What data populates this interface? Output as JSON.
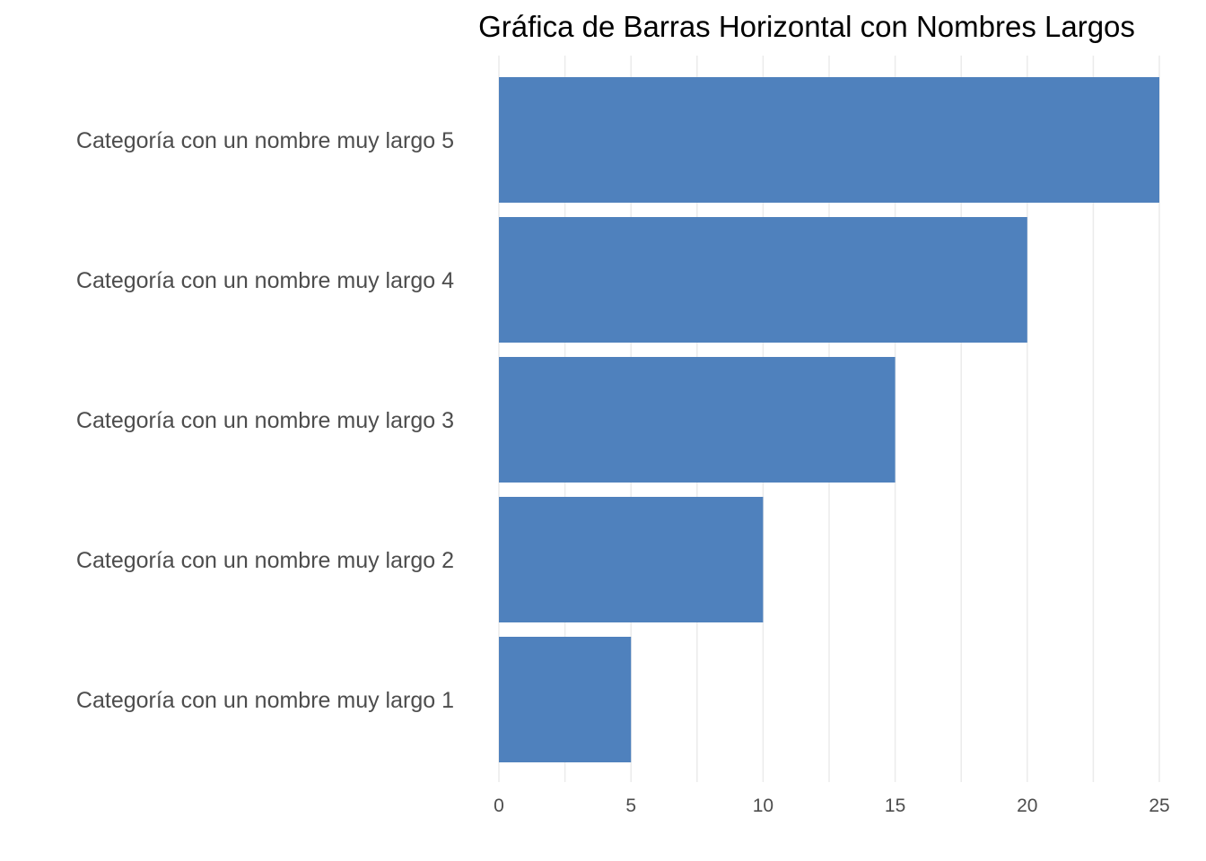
{
  "chart_data": {
    "type": "bar",
    "orientation": "horizontal",
    "title": "Gráfica de Barras Horizontal con Nombres Largos",
    "xlabel": "",
    "ylabel": "",
    "categories": [
      "Categoría con un nombre muy largo 1",
      "Categoría con un nombre muy largo 2",
      "Categoría con un nombre muy largo 3",
      "Categoría con un nombre muy largo 4",
      "Categoría con un nombre muy largo 5"
    ],
    "values": [
      5,
      10,
      15,
      20,
      25
    ],
    "xlim": [
      0,
      25
    ],
    "x_ticks": [
      0,
      5,
      10,
      15,
      20,
      25
    ],
    "bar_color": "#4f81bd",
    "grid": true,
    "legend": "none"
  }
}
